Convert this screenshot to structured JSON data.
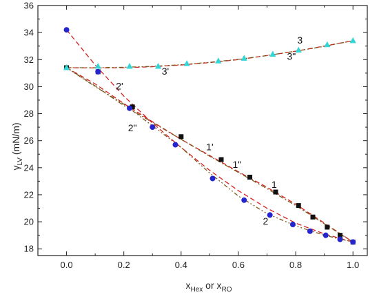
{
  "chart_data": {
    "type": "scatter",
    "xlim": [
      -0.1,
      1.05
    ],
    "ylim": [
      17.5,
      36
    ],
    "x_ticks": [
      "0.0",
      "0.2",
      "0.4",
      "0.6",
      "0.8",
      "1.0"
    ],
    "x_tick_values": [
      0,
      0.2,
      0.4,
      0.6,
      0.8,
      1.0
    ],
    "y_ticks": [
      "18",
      "20",
      "22",
      "24",
      "26",
      "28",
      "30",
      "32",
      "34",
      "36"
    ],
    "y_tick_values": [
      18,
      20,
      22,
      24,
      26,
      28,
      30,
      32,
      34,
      36
    ],
    "ylabel": {
      "main": "γ",
      "sub": "LV",
      "unit": " (mN/m)"
    },
    "xlabel": {
      "p1": "x",
      "s1": "Hex",
      "mid": " or x",
      "s2": "RO"
    },
    "series": [
      {
        "marker": "square",
        "color": "#111111",
        "x": [
          0.0,
          0.11,
          0.23,
          0.4,
          0.54,
          0.64,
          0.73,
          0.81,
          0.86,
          0.91,
          0.955,
          1.0
        ],
        "y": [
          31.4,
          31.1,
          28.5,
          26.3,
          24.6,
          23.3,
          22.2,
          21.2,
          20.35,
          19.6,
          19.0,
          18.5
        ]
      },
      {
        "marker": "circle",
        "color": "#2525d0",
        "x": [
          0.0,
          0.11,
          0.22,
          0.3,
          0.38,
          0.51,
          0.62,
          0.71,
          0.79,
          0.85,
          0.905,
          0.955,
          1.0
        ],
        "y": [
          34.2,
          31.1,
          28.4,
          27.0,
          25.7,
          23.2,
          21.6,
          20.5,
          19.8,
          19.3,
          19.0,
          18.7,
          18.5
        ]
      },
      {
        "marker": "triangle",
        "color": "#33d6d6",
        "x": [
          0.0,
          0.11,
          0.22,
          0.32,
          0.42,
          0.53,
          0.62,
          0.72,
          0.81,
          0.91,
          1.0
        ],
        "y": [
          31.4,
          31.5,
          31.5,
          31.5,
          31.7,
          31.9,
          32.1,
          32.4,
          32.7,
          33.1,
          33.4
        ]
      }
    ],
    "fit_curves": [
      {
        "style": "dash",
        "color": "#d62020",
        "x": [
          0.0,
          0.1,
          0.2,
          0.3,
          0.4,
          0.5,
          0.6,
          0.7,
          0.8,
          0.9,
          1.0
        ],
        "y": [
          31.4,
          30.2,
          28.75,
          27.4,
          26.1,
          24.9,
          23.7,
          22.55,
          21.3,
          19.9,
          18.5
        ]
      },
      {
        "style": "dashdot",
        "color": "#7a5a20",
        "x": [
          0.0,
          0.1,
          0.2,
          0.3,
          0.4,
          0.5,
          0.6,
          0.7,
          0.8,
          0.9,
          1.0
        ],
        "y": [
          31.4,
          30.05,
          28.6,
          27.35,
          26.1,
          24.85,
          23.65,
          22.45,
          21.2,
          19.85,
          18.5
        ]
      },
      {
        "style": "dash",
        "color": "#d62020",
        "x": [
          0.0,
          0.1,
          0.2,
          0.3,
          0.4,
          0.5,
          0.6,
          0.7,
          0.8,
          0.9,
          1.0
        ],
        "y": [
          34.2,
          31.6,
          29.3,
          27.3,
          25.5,
          23.8,
          22.3,
          21.0,
          19.9,
          19.1,
          18.5
        ]
      },
      {
        "style": "dashdotdot",
        "color": "#7a5a20",
        "x": [
          0.0,
          0.1,
          0.2,
          0.3,
          0.4,
          0.5,
          0.6,
          0.7,
          0.8,
          0.9,
          1.0
        ],
        "y": [
          31.4,
          30.0,
          28.7,
          27.1,
          25.5,
          23.6,
          21.9,
          20.6,
          19.7,
          19.0,
          18.5
        ]
      },
      {
        "style": "dash",
        "color": "#d62020",
        "x": [
          0.0,
          0.1,
          0.2,
          0.3,
          0.4,
          0.5,
          0.6,
          0.7,
          0.8,
          0.9,
          1.0
        ],
        "y": [
          31.4,
          31.38,
          31.4,
          31.47,
          31.6,
          31.78,
          32.0,
          32.3,
          32.62,
          33.0,
          33.4
        ]
      },
      {
        "style": "dashdotdot",
        "color": "#7a5a20",
        "x": [
          0.0,
          0.1,
          0.2,
          0.3,
          0.4,
          0.5,
          0.6,
          0.7,
          0.8,
          0.9,
          1.0
        ],
        "y": [
          31.4,
          31.4,
          31.43,
          31.5,
          31.62,
          31.8,
          32.02,
          32.3,
          32.62,
          32.98,
          33.4
        ]
      }
    ],
    "annotations": [
      {
        "text": "3",
        "x": 0.815,
        "y": 33.2
      },
      {
        "text": "3\"",
        "x": 0.785,
        "y": 32.0
      },
      {
        "text": "3'",
        "x": 0.345,
        "y": 30.9
      },
      {
        "text": "2'",
        "x": 0.185,
        "y": 29.8
      },
      {
        "text": "2\"",
        "x": 0.23,
        "y": 26.7
      },
      {
        "text": "1'",
        "x": 0.5,
        "y": 25.3
      },
      {
        "text": "1\"",
        "x": 0.595,
        "y": 24.0
      },
      {
        "text": "1",
        "x": 0.725,
        "y": 22.5
      },
      {
        "text": "2",
        "x": 0.695,
        "y": 19.8
      }
    ]
  }
}
